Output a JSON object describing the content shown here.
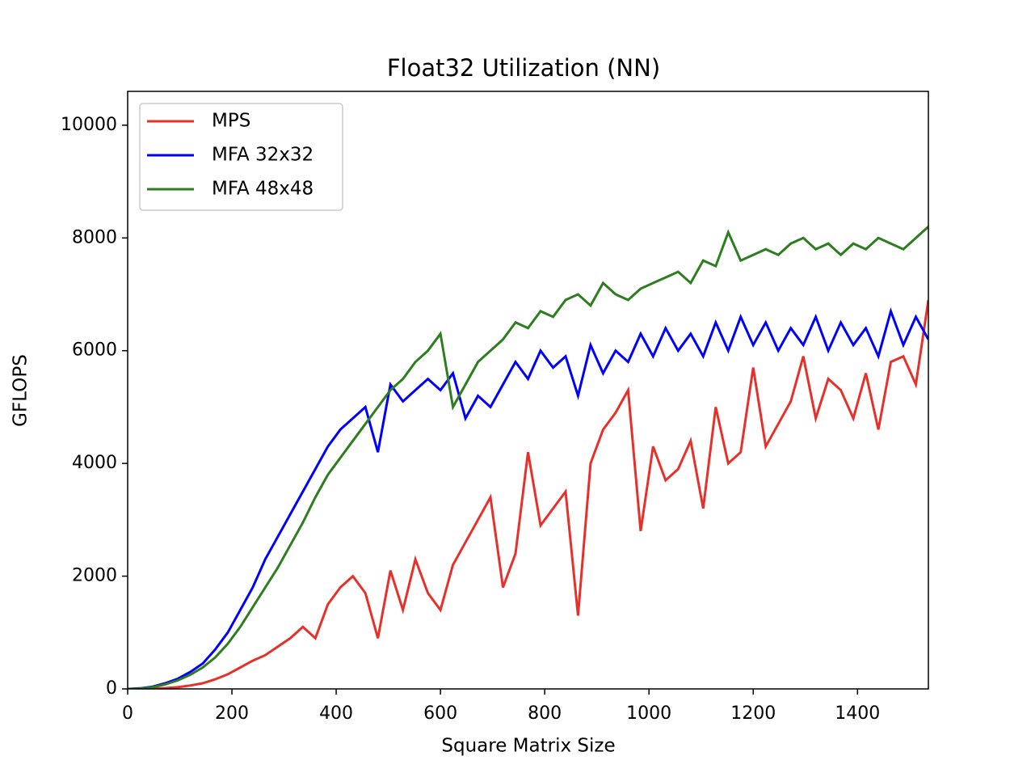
{
  "chart_data": {
    "type": "line",
    "title": "Float32 Utilization (NN)",
    "x_label": "Square Matrix Size",
    "y_label": "GFLOPS",
    "x": [
      0,
      24,
      48,
      72,
      96,
      120,
      144,
      168,
      192,
      216,
      240,
      264,
      288,
      312,
      336,
      360,
      384,
      408,
      432,
      456,
      480,
      504,
      528,
      552,
      576,
      600,
      624,
      648,
      672,
      696,
      720,
      744,
      768,
      792,
      816,
      840,
      864,
      888,
      912,
      936,
      960,
      984,
      1008,
      1032,
      1056,
      1080,
      1104,
      1128,
      1152,
      1176,
      1200,
      1224,
      1248,
      1272,
      1296,
      1320,
      1344,
      1368,
      1392,
      1416,
      1440,
      1464,
      1488,
      1512,
      1536
    ],
    "series": [
      {
        "name": "MPS",
        "color": "#e8302a",
        "values": [
          0,
          0,
          5,
          15,
          30,
          60,
          100,
          170,
          260,
          380,
          500,
          600,
          750,
          900,
          1100,
          900,
          1500,
          1800,
          2000,
          1700,
          900,
          2100,
          1400,
          2300,
          1700,
          1400,
          2200,
          2600,
          3000,
          3400,
          1800,
          2400,
          4200,
          2900,
          3200,
          3500,
          1300,
          4000,
          4600,
          4900,
          5300,
          2800,
          4300,
          3700,
          3900,
          4400,
          3200,
          5000,
          4000,
          4200,
          5700,
          4300,
          4700,
          5100,
          5900,
          4800,
          5500,
          5300,
          4800,
          5600,
          4600,
          5800,
          5900,
          5400,
          6900
        ]
      },
      {
        "name": "MFA 32x32",
        "color": "#0000ff",
        "values": [
          0,
          10,
          40,
          100,
          180,
          300,
          450,
          700,
          1000,
          1400,
          1800,
          2300,
          2700,
          3100,
          3500,
          3900,
          4300,
          4600,
          4800,
          5000,
          4200,
          5400,
          5100,
          5300,
          5500,
          5300,
          5600,
          4800,
          5200,
          5000,
          5400,
          5800,
          5500,
          6000,
          5700,
          5900,
          5200,
          6100,
          5600,
          6000,
          5800,
          6300,
          5900,
          6400,
          6000,
          6300,
          5900,
          6500,
          6000,
          6600,
          6100,
          6500,
          6000,
          6400,
          6100,
          6600,
          6000,
          6500,
          6100,
          6400,
          5900,
          6700,
          6100,
          6600,
          6200
        ]
      },
      {
        "name": "MFA 48x48",
        "color": "#2e7d1f",
        "values": [
          0,
          5,
          30,
          80,
          150,
          250,
          380,
          560,
          800,
          1100,
          1450,
          1800,
          2150,
          2550,
          2950,
          3400,
          3800,
          4100,
          4400,
          4700,
          5000,
          5300,
          5500,
          5800,
          6000,
          6300,
          5000,
          5400,
          5800,
          6000,
          6200,
          6500,
          6400,
          6700,
          6600,
          6900,
          7000,
          6800,
          7200,
          7000,
          6900,
          7100,
          7200,
          7300,
          7400,
          7200,
          7600,
          7500,
          8100,
          7600,
          7700,
          7800,
          7700,
          7900,
          8000,
          7800,
          7900,
          7700,
          7900,
          7800,
          8000,
          7900,
          7800,
          8000,
          8200
        ]
      }
    ],
    "xlim": [
      0,
      1536
    ],
    "ylim": [
      0,
      10600
    ],
    "xticks": [
      0,
      200,
      400,
      600,
      800,
      1000,
      1200,
      1400
    ],
    "yticks": [
      0,
      2000,
      4000,
      6000,
      8000,
      10000
    ],
    "legend": "upper left"
  }
}
